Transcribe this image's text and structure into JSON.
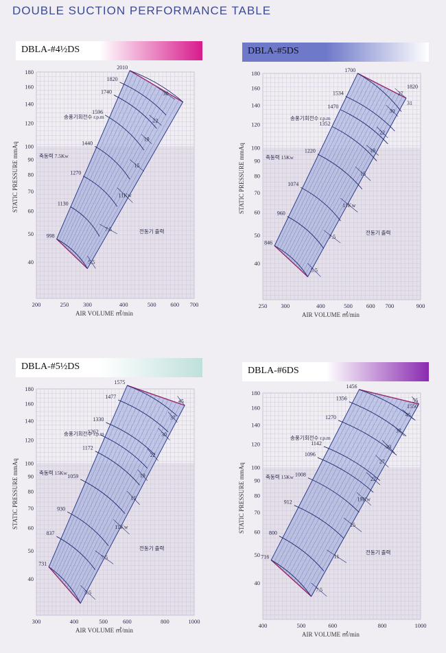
{
  "page_title": "DOUBLE SUCTION PERFORMANCE TABLE",
  "colors": {
    "grid": "#c9c3d6",
    "region_fill": "#9aa8dc",
    "region_line": "#2d3c8c",
    "edge": "#9a2a6a",
    "shade": "#d8d3e0"
  },
  "chart_data": [
    {
      "type": "line",
      "title": "DBLA-#4½DS",
      "band_colors": [
        "#ffffff",
        "#d81b8c"
      ],
      "xlabel": "AIR VOLUME ㎥/min",
      "ylabel": "STATIC PRESSURE mmAq",
      "xlim": [
        200,
        700
      ],
      "ylim": [
        30,
        180
      ],
      "x_ticks": [
        200,
        250,
        300,
        400,
        500,
        600,
        700
      ],
      "y_ticks": [
        40,
        50,
        60,
        70,
        80,
        90,
        100,
        120,
        140,
        160,
        180
      ],
      "speed_label": "송풍기회전수 r.p.m",
      "power_label": "축동력 7.5Kw",
      "motor_label": "전동기 출력",
      "rpm_curves": [
        {
          "label": "998",
          "x": [
            235,
            300
          ],
          "y": [
            48,
            38
          ]
        },
        {
          "label": "1130",
          "x": [
            262,
            330
          ],
          "y": [
            62,
            49
          ]
        },
        {
          "label": "1270",
          "x": [
            290,
            380
          ],
          "y": [
            79,
            62
          ]
        },
        {
          "label": "1440",
          "x": [
            318,
            420
          ],
          "y": [
            100,
            77
          ]
        },
        {
          "label": "1596",
          "x": [
            345,
            470
          ],
          "y": [
            128,
            97
          ]
        },
        {
          "label": "1740",
          "x": [
            370,
            520
          ],
          "y": [
            150,
            115
          ]
        },
        {
          "label": "1820",
          "x": [
            388,
            560
          ],
          "y": [
            166,
            128
          ]
        },
        {
          "label": "2010",
          "x": [
            420,
            640
          ],
          "y": [
            182,
            142
          ]
        }
      ],
      "power_lines": [
        {
          "label": "5.5",
          "x": [
            300,
            320
          ],
          "y": [
            42,
            38
          ]
        },
        {
          "label": "7.5",
          "x": [
            330,
            380
          ],
          "y": [
            54,
            50
          ]
        },
        {
          "label": "11Kw",
          "x": [
            380,
            430
          ],
          "y": [
            72,
            64
          ]
        },
        {
          "label": "15",
          "x": [
            420,
            470
          ],
          "y": [
            90,
            82
          ]
        },
        {
          "label": "19",
          "x": [
            460,
            500
          ],
          "y": [
            110,
            102
          ]
        },
        {
          "label": "22",
          "x": [
            490,
            540
          ],
          "y": [
            128,
            118
          ]
        },
        {
          "label": "30",
          "x": [
            520,
            600
          ],
          "y": [
            160,
            145
          ]
        }
      ],
      "region_left": {
        "x": [
          235,
          420
        ],
        "y": [
          48,
          182
        ]
      },
      "region_right": {
        "x": [
          300,
          640
        ],
        "y": [
          38,
          142
        ]
      }
    },
    {
      "type": "line",
      "title": "DBLA-#5DS",
      "band_colors": [
        "#6f79c9",
        "#ffffff"
      ],
      "xlabel": "AIR VOLUME ㎥/min",
      "ylabel": "STATIC PRESSURE mmAq",
      "xlim": [
        250,
        900
      ],
      "ylim": [
        30,
        180
      ],
      "x_ticks": [
        250,
        300,
        400,
        500,
        600,
        700,
        900
      ],
      "y_ticks": [
        40,
        50,
        60,
        70,
        80,
        90,
        100,
        120,
        140,
        160,
        180
      ],
      "speed_label": "송풍기회전수 r.p.m",
      "power_label": "축동력 15Kw",
      "motor_label": "전동기 출력",
      "rpm_curves": [
        {
          "label": "846",
          "x": [
            275,
            360
          ],
          "y": [
            46,
            36
          ]
        },
        {
          "label": "960",
          "x": [
            305,
            410
          ],
          "y": [
            58,
            45
          ]
        },
        {
          "label": "1074",
          "x": [
            340,
            470
          ],
          "y": [
            73,
            56
          ]
        },
        {
          "label": "1220",
          "x": [
            390,
            560
          ],
          "y": [
            95,
            72
          ]
        },
        {
          "label": "1352",
          "x": [
            440,
            630
          ],
          "y": [
            118,
            90
          ]
        },
        {
          "label": "1470",
          "x": [
            470,
            690
          ],
          "y": [
            135,
            103
          ]
        },
        {
          "label": "1534",
          "x": [
            490,
            730
          ],
          "y": [
            150,
            114
          ]
        },
        {
          "label": "1700",
          "x": [
            540,
            770
          ],
          "y": [
            180,
            133
          ]
        }
      ],
      "power_lines": [
        {
          "label": "5.5",
          "x": [
            360,
            400
          ],
          "y": [
            40,
            36
          ]
        },
        {
          "label": "7.5",
          "x": [
            410,
            470
          ],
          "y": [
            52,
            47
          ]
        },
        {
          "label": "11Kw",
          "x": [
            470,
            540
          ],
          "y": [
            67,
            60
          ]
        },
        {
          "label": "15",
          "x": [
            530,
            600
          ],
          "y": [
            86,
            77
          ]
        },
        {
          "label": "19",
          "x": [
            580,
            640
          ],
          "y": [
            102,
            94
          ]
        },
        {
          "label": "22",
          "x": [
            630,
            690
          ],
          "y": [
            118,
            108
          ]
        },
        {
          "label": "30",
          "x": [
            680,
            750
          ],
          "y": [
            140,
            128
          ]
        },
        {
          "label": "37",
          "x": [
            730,
            800
          ],
          "y": [
            160,
            148
          ]
        }
      ],
      "extra_labels": [
        "1820",
        "31"
      ],
      "region_left": {
        "x": [
          275,
          540
        ],
        "y": [
          46,
          180
        ]
      },
      "region_right": {
        "x": [
          360,
          800
        ],
        "y": [
          36,
          148
        ]
      }
    },
    {
      "type": "line",
      "title": "DBLA-#5½DS",
      "band_colors": [
        "#ffffff",
        "#bfe0dc"
      ],
      "xlabel": "AIR VOLUME ㎥/min",
      "ylabel": "STATIC PRESSURE mmAq",
      "xlim": [
        300,
        1000
      ],
      "ylim": [
        30,
        180
      ],
      "x_ticks": [
        300,
        400,
        500,
        600,
        800,
        1000
      ],
      "y_ticks": [
        40,
        50,
        60,
        70,
        80,
        90,
        100,
        120,
        140,
        160,
        180
      ],
      "speed_label": "송풍기회전수 r.p.m",
      "power_label": "축동력 15Kw",
      "motor_label": "전동기 출력",
      "rpm_curves": [
        {
          "label": "731",
          "x": [
            330,
            420
          ],
          "y": [
            44,
            33
          ]
        },
        {
          "label": "837",
          "x": [
            350,
            470
          ],
          "y": [
            56,
            43
          ]
        },
        {
          "label": "930",
          "x": [
            380,
            520
          ],
          "y": [
            68,
            52
          ]
        },
        {
          "label": "1059",
          "x": [
            420,
            590
          ],
          "y": [
            88,
            67
          ]
        },
        {
          "label": "1172",
          "x": [
            470,
            660
          ],
          "y": [
            110,
            84
          ]
        },
        {
          "label": "1262",
          "x": [
            490,
            700
          ],
          "y": [
            125,
            96
          ]
        },
        {
          "label": "1330",
          "x": [
            510,
            740
          ],
          "y": [
            138,
            107
          ]
        },
        {
          "label": "1477",
          "x": [
            560,
            820
          ],
          "y": [
            165,
            128
          ]
        },
        {
          "label": "1575",
          "x": [
            600,
            880
          ],
          "y": [
            185,
            145
          ]
        }
      ],
      "power_lines": [
        {
          "label": "5.5",
          "x": [
            420,
            470
          ],
          "y": [
            38,
            34
          ]
        },
        {
          "label": "7.5",
          "x": [
            470,
            540
          ],
          "y": [
            50,
            45
          ]
        },
        {
          "label": "11Kw",
          "x": [
            540,
            610
          ],
          "y": [
            64,
            57
          ]
        },
        {
          "label": "15",
          "x": [
            600,
            660
          ],
          "y": [
            80,
            72
          ]
        },
        {
          "label": "19",
          "x": [
            650,
            700
          ],
          "y": [
            95,
            87
          ]
        },
        {
          "label": "22",
          "x": [
            700,
            760
          ],
          "y": [
            112,
            102
          ]
        },
        {
          "label": "30",
          "x": [
            760,
            830
          ],
          "y": [
            132,
            120
          ]
        },
        {
          "label": "37",
          "x": [
            820,
            880
          ],
          "y": [
            150,
            138
          ]
        },
        {
          "label": "45",
          "x": [
            880,
            930
          ],
          "y": [
            170,
            158
          ]
        }
      ],
      "region_left": {
        "x": [
          330,
          600
        ],
        "y": [
          44,
          185
        ]
      },
      "region_right": {
        "x": [
          420,
          930
        ],
        "y": [
          33,
          158
        ]
      }
    },
    {
      "type": "line",
      "title": "DBLA-#6DS",
      "band_colors": [
        "#ffffff",
        "#8a2ab0"
      ],
      "xlabel": "AIR VOLUME ㎥/min",
      "ylabel": "STATIC PRESSURE mmAq",
      "xlim": [
        400,
        1000
      ],
      "ylim": [
        30,
        180
      ],
      "x_ticks": [
        400,
        500,
        600,
        800,
        1000
      ],
      "y_ticks": [
        40,
        50,
        60,
        70,
        80,
        90,
        100,
        120,
        140,
        160,
        180
      ],
      "speed_label": "송풍기회전수 r.p.m",
      "power_label": "축동력 15Kw",
      "motor_label": "전동기 출력",
      "rpm_curves": [
        {
          "label": "716",
          "x": [
            420,
            530
          ],
          "y": [
            48,
            36
          ]
        },
        {
          "label": "800",
          "x": [
            440,
            570
          ],
          "y": [
            58,
            44
          ]
        },
        {
          "label": "912",
          "x": [
            480,
            640
          ],
          "y": [
            74,
            57
          ]
        },
        {
          "label": "1008",
          "x": [
            520,
            700
          ],
          "y": [
            92,
            70
          ]
        },
        {
          "label": "1096",
          "x": [
            550,
            760
          ],
          "y": [
            108,
            82
          ]
        },
        {
          "label": "1142",
          "x": [
            570,
            790
          ],
          "y": [
            118,
            90
          ]
        },
        {
          "label": "1270",
          "x": [
            620,
            870
          ],
          "y": [
            145,
            110
          ]
        },
        {
          "label": "1356",
          "x": [
            660,
            920
          ],
          "y": [
            168,
            128
          ]
        },
        {
          "label": "1456",
          "x": [
            700,
            970
          ],
          "y": [
            185,
            145
          ]
        }
      ],
      "power_lines": [
        {
          "label": "7.5",
          "x": [
            530,
            580
          ],
          "y": [
            40,
            36
          ]
        },
        {
          "label": "11",
          "x": [
            580,
            650
          ],
          "y": [
            52,
            47
          ]
        },
        {
          "label": "15",
          "x": [
            640,
            710
          ],
          "y": [
            67,
            60
          ]
        },
        {
          "label": "19Kw",
          "x": [
            690,
            750
          ],
          "y": [
            82,
            74
          ]
        },
        {
          "label": "22",
          "x": [
            730,
            790
          ],
          "y": [
            96,
            87
          ]
        },
        {
          "label": "27",
          "x": [
            770,
            830
          ],
          "y": [
            110,
            100
          ]
        },
        {
          "label": "30",
          "x": [
            800,
            860
          ],
          "y": [
            124,
            112
          ]
        },
        {
          "label": "37",
          "x": [
            850,
            910
          ],
          "y": [
            140,
            128
          ]
        },
        {
          "label": "45",
          "x": [
            900,
            960
          ],
          "y": [
            158,
            146
          ]
        },
        {
          "label": "55",
          "x": [
            950,
            990
          ],
          "y": [
            175,
            165
          ]
        }
      ],
      "extra_labels": [
        "1550"
      ],
      "region_left": {
        "x": [
          420,
          700
        ],
        "y": [
          48,
          185
        ]
      },
      "region_right": {
        "x": [
          530,
          990
        ],
        "y": [
          36,
          165
        ]
      }
    }
  ]
}
